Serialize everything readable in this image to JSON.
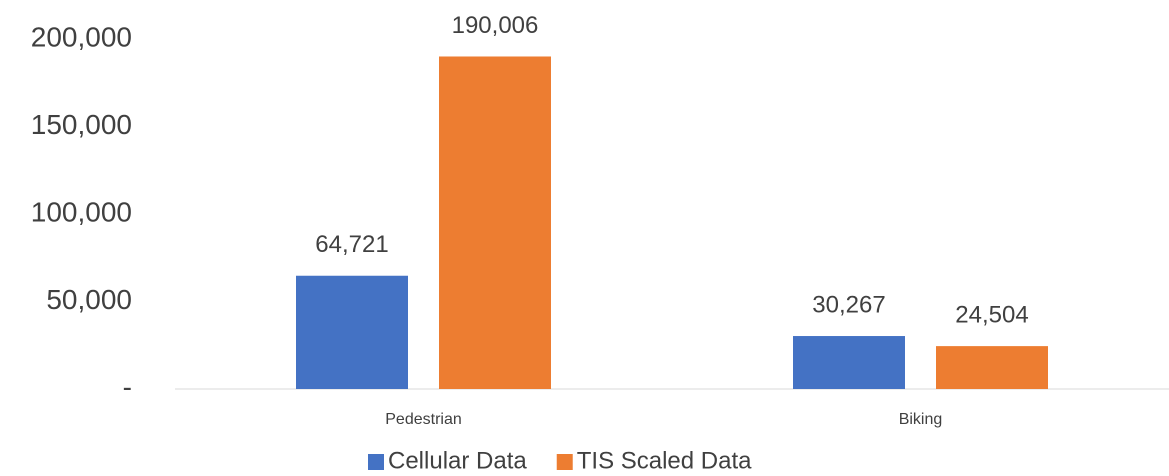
{
  "chart_data": {
    "type": "bar",
    "categories": [
      "Pedestrian",
      "Biking"
    ],
    "series": [
      {
        "name": "Cellular Data",
        "color": "#4472c4",
        "values": [
          64721,
          30267
        ],
        "value_labels": [
          "64,721",
          "30,267"
        ]
      },
      {
        "name": "TIS Scaled Data",
        "color": "#ed7d31",
        "values": [
          190006,
          24504
        ],
        "value_labels": [
          "190,006",
          "24,504"
        ]
      }
    ],
    "ylim": [
      0,
      200000
    ],
    "yticks": [
      {
        "value": 0,
        "label": "-"
      },
      {
        "value": 50000,
        "label": "50,000"
      },
      {
        "value": 100000,
        "label": "100,000"
      },
      {
        "value": 150000,
        "label": "150,000"
      },
      {
        "value": 200000,
        "label": "200,000"
      }
    ],
    "grid": false,
    "legend": "bottom"
  }
}
